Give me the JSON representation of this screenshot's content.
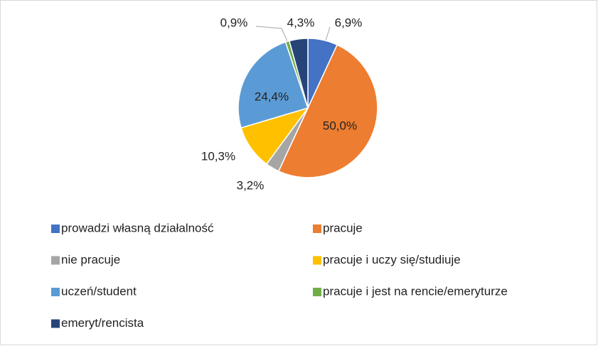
{
  "chart_data": {
    "type": "pie",
    "categories": [
      "prowadzi własną działalność",
      "pracuje",
      "nie pracuje",
      "pracuje i uczy się/studiuje",
      "uczeń/student",
      "pracuje i jest na rencie/emeryturze",
      "emeryt/rencista"
    ],
    "values": [
      6.9,
      50.0,
      3.2,
      10.3,
      24.4,
      0.9,
      4.3
    ],
    "value_labels": [
      "6,9%",
      "50,0%",
      "3,2%",
      "10,3%",
      "24,4%",
      "0,9%",
      "4,3%"
    ],
    "colors": [
      "#4472c4",
      "#ed7d31",
      "#a5a5a5",
      "#ffc000",
      "#5b9bd5",
      "#70ad47",
      "#264478"
    ],
    "legend": "bottom"
  }
}
